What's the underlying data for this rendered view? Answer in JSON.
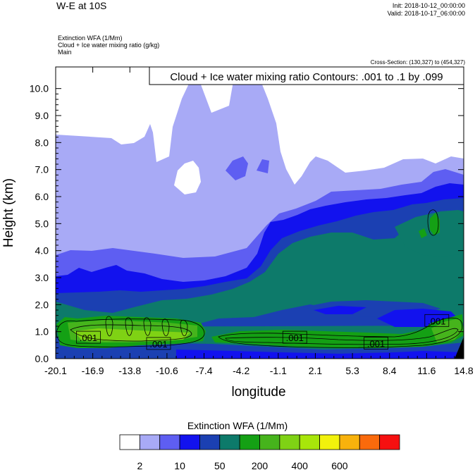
{
  "header": {
    "title": "W-E at 10S",
    "init": "Init: 2018-10-12_00:00:00",
    "valid": "Valid: 2018-10-17_06:00:00",
    "lines": [
      "Extinction WFA   (1/Mm)",
      "Cloud + Ice water mixing ratio   (g/kg)",
      "Main"
    ],
    "cross_section": "Cross-Section: (130,327) to (454,327)"
  },
  "chart_data": {
    "type": "heatmap",
    "title": "Cloud + Ice water mixing ratio Contours: .001 to .1 by .099",
    "xlabel": "longitude",
    "ylabel": "Height (km)",
    "x_tick_labels": [
      "-20.1",
      "-16.9",
      "-13.8",
      "-10.6",
      "-7.4",
      "-4.2",
      "-1.1",
      "2.1",
      "5.3",
      "8.4",
      "11.6",
      "14.8"
    ],
    "xlim": [
      -20.1,
      14.8
    ],
    "y_ticks": [
      0.0,
      1.0,
      2.0,
      3.0,
      4.0,
      5.0,
      6.0,
      7.0,
      8.0,
      9.0,
      10.0
    ],
    "y_tick_labels": [
      "0.0",
      "1.0",
      "2.0",
      "3.0",
      "4.0",
      "5.0",
      "6.0",
      "7.0",
      "8.0",
      "9.0",
      "10.0"
    ],
    "ylim": [
      0,
      10.8
    ],
    "contour_labels": [
      {
        "text": ".001",
        "x": -17.3,
        "y": 0.78
      },
      {
        "text": ".001",
        "x": -11.3,
        "y": 0.55
      },
      {
        "text": ".001",
        "x": 0.35,
        "y": 0.78
      },
      {
        "text": ".001",
        "x": 7.3,
        "y": 0.56
      },
      {
        "text": ".001",
        "x": 12.5,
        "y": 1.4
      }
    ],
    "colorbar": {
      "title": "Extinction WFA  (1/Mm)",
      "colors": [
        "#ffffff",
        "#a8aaf6",
        "#5e5ef2",
        "#1212ee",
        "#1b40b2",
        "#0d7a6a",
        "#14a014",
        "#46b41c",
        "#7fd214",
        "#a8e60a",
        "#f2f20c",
        "#f8b20c",
        "#fa6a0c",
        "#f61010"
      ],
      "labels": [
        "2",
        "10",
        "50",
        "200",
        "400",
        "600"
      ]
    }
  }
}
